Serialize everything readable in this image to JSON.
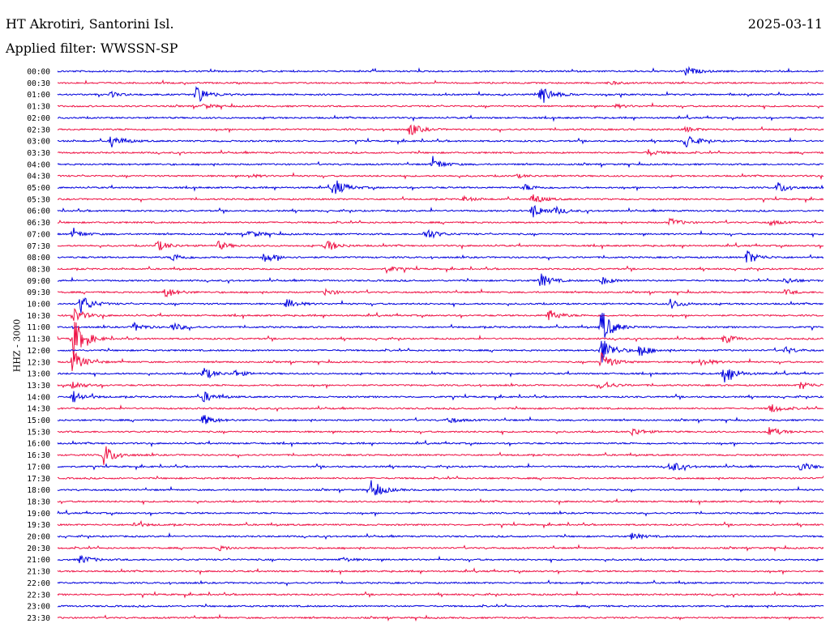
{
  "header": {
    "station": "HT Akrotiri, Santorini Isl.",
    "date": "2025-03-11",
    "filter": "Applied filter: WWSSN-SP"
  },
  "chart_data": {
    "type": "line",
    "title": "HT Akrotiri, Santorini Isl.",
    "ylabel": "HHZ - 3000",
    "colors": [
      "#0000dd",
      "#ee1144"
    ],
    "series": [
      {
        "label": "00:00",
        "events": [
          [
            0.82,
            6
          ]
        ]
      },
      {
        "label": "00:30",
        "events": [
          [
            0.72,
            2
          ]
        ]
      },
      {
        "label": "01:00",
        "events": [
          [
            0.07,
            3
          ],
          [
            0.18,
            12
          ],
          [
            0.63,
            14
          ]
        ]
      },
      {
        "label": "01:30",
        "events": [
          [
            0.19,
            3
          ],
          [
            0.73,
            2
          ]
        ]
      },
      {
        "label": "02:00",
        "events": []
      },
      {
        "label": "02:30",
        "events": [
          [
            0.46,
            8
          ],
          [
            0.82,
            3
          ]
        ]
      },
      {
        "label": "03:00",
        "events": [
          [
            0.07,
            8
          ],
          [
            0.82,
            10
          ]
        ]
      },
      {
        "label": "03:30",
        "events": [
          [
            0.77,
            4
          ]
        ]
      },
      {
        "label": "04:00",
        "events": [
          [
            0.49,
            7
          ]
        ]
      },
      {
        "label": "04:30",
        "events": [
          [
            0.25,
            2
          ],
          [
            0.6,
            2
          ]
        ]
      },
      {
        "label": "05:00",
        "events": [
          [
            0.36,
            12
          ],
          [
            0.61,
            4
          ],
          [
            0.94,
            7
          ]
        ]
      },
      {
        "label": "05:30",
        "events": [
          [
            0.53,
            3
          ],
          [
            0.62,
            6
          ]
        ]
      },
      {
        "label": "06:00",
        "events": [
          [
            0.62,
            9
          ],
          [
            0.65,
            4
          ]
        ]
      },
      {
        "label": "06:30",
        "events": [
          [
            0.8,
            5
          ],
          [
            0.93,
            3
          ]
        ]
      },
      {
        "label": "07:00",
        "events": [
          [
            0.02,
            5
          ],
          [
            0.25,
            5
          ],
          [
            0.48,
            8
          ]
        ]
      },
      {
        "label": "07:30",
        "events": [
          [
            0.13,
            7
          ],
          [
            0.21,
            5
          ],
          [
            0.35,
            8
          ]
        ]
      },
      {
        "label": "08:00",
        "events": [
          [
            0.15,
            5
          ],
          [
            0.27,
            7
          ],
          [
            0.9,
            9
          ]
        ]
      },
      {
        "label": "08:30",
        "events": [
          [
            0.43,
            4
          ]
        ]
      },
      {
        "label": "09:00",
        "events": [
          [
            0.63,
            9
          ],
          [
            0.71,
            5
          ],
          [
            0.95,
            4
          ]
        ]
      },
      {
        "label": "09:30",
        "events": [
          [
            0.14,
            7
          ],
          [
            0.35,
            4
          ],
          [
            0.95,
            3
          ]
        ]
      },
      {
        "label": "10:00",
        "events": [
          [
            0.03,
            12
          ],
          [
            0.3,
            6
          ],
          [
            0.8,
            6
          ]
        ]
      },
      {
        "label": "10:30",
        "events": [
          [
            0.02,
            10
          ],
          [
            0.64,
            8
          ]
        ]
      },
      {
        "label": "11:00",
        "events": [
          [
            0.1,
            5
          ],
          [
            0.15,
            5
          ],
          [
            0.71,
            22
          ]
        ]
      },
      {
        "label": "11:30",
        "events": [
          [
            0.02,
            28
          ],
          [
            0.87,
            6
          ]
        ]
      },
      {
        "label": "12:00",
        "events": [
          [
            0.71,
            18
          ],
          [
            0.76,
            8
          ],
          [
            0.95,
            4
          ]
        ]
      },
      {
        "label": "12:30",
        "events": [
          [
            0.02,
            14
          ],
          [
            0.71,
            12
          ],
          [
            0.84,
            5
          ]
        ]
      },
      {
        "label": "13:00",
        "events": [
          [
            0.19,
            8
          ],
          [
            0.23,
            4
          ],
          [
            0.87,
            14
          ]
        ]
      },
      {
        "label": "13:30",
        "events": [
          [
            0.02,
            5
          ],
          [
            0.71,
            6
          ],
          [
            0.97,
            5
          ]
        ]
      },
      {
        "label": "14:00",
        "events": [
          [
            0.02,
            8
          ],
          [
            0.19,
            7
          ]
        ]
      },
      {
        "label": "14:30",
        "events": [
          [
            0.93,
            6
          ]
        ]
      },
      {
        "label": "15:00",
        "events": [
          [
            0.19,
            7
          ],
          [
            0.51,
            4
          ]
        ]
      },
      {
        "label": "15:30",
        "events": [
          [
            0.75,
            5
          ],
          [
            0.93,
            6
          ]
        ]
      },
      {
        "label": "16:00",
        "events": []
      },
      {
        "label": "16:30",
        "events": [
          [
            0.06,
            14
          ]
        ]
      },
      {
        "label": "17:00",
        "events": [
          [
            0.8,
            8
          ],
          [
            0.97,
            6
          ]
        ]
      },
      {
        "label": "17:30",
        "events": []
      },
      {
        "label": "18:00",
        "events": [
          [
            0.41,
            12
          ]
        ]
      },
      {
        "label": "18:30",
        "events": []
      },
      {
        "label": "19:00",
        "events": []
      },
      {
        "label": "19:30",
        "events": [
          [
            0.1,
            3
          ]
        ]
      },
      {
        "label": "20:00",
        "events": [
          [
            0.75,
            4
          ]
        ]
      },
      {
        "label": "20:30",
        "events": [
          [
            0.21,
            3
          ]
        ]
      },
      {
        "label": "21:00",
        "events": [
          [
            0.03,
            6
          ],
          [
            0.37,
            3
          ]
        ]
      },
      {
        "label": "21:30",
        "events": []
      },
      {
        "label": "22:00",
        "events": []
      },
      {
        "label": "22:30",
        "events": []
      },
      {
        "label": "23:00",
        "events": []
      },
      {
        "label": "23:30",
        "events": []
      }
    ]
  }
}
